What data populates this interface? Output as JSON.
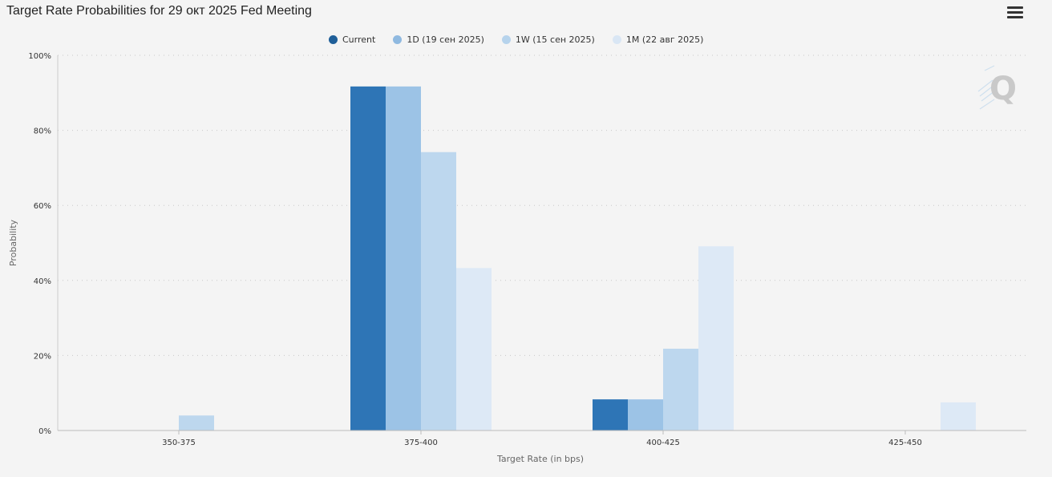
{
  "header": {
    "title": "Target Rate Probabilities for 29 окт 2025 Fed Meeting",
    "menu_icon": "hamburger-menu-icon"
  },
  "watermark": {
    "text": "Q"
  },
  "chart_data": {
    "type": "bar",
    "title": "Target Rate Probabilities for 29 окт 2025 Fed Meeting",
    "xlabel": "Target Rate (in bps)",
    "ylabel": "Probability",
    "categories": [
      "350-375",
      "375-400",
      "400-425",
      "425-450"
    ],
    "ylim": [
      0,
      100
    ],
    "y_ticks": [
      "0%",
      "20%",
      "40%",
      "60%",
      "80%",
      "100%"
    ],
    "grid": true,
    "legend_position": "top-center",
    "series": [
      {
        "name": "Current",
        "color": "#2e75b6",
        "values": [
          0,
          91.7,
          8.3,
          0
        ]
      },
      {
        "name": "1D (19 сен 2025)",
        "color": "#9cc3e6",
        "values": [
          0,
          91.7,
          8.3,
          0
        ]
      },
      {
        "name": "1W (15 сен 2025)",
        "color": "#bdd7ee",
        "values": [
          4.0,
          74.2,
          21.8,
          0
        ]
      },
      {
        "name": "1M (22 авг 2025)",
        "color": "#dde9f6",
        "values": [
          0,
          43.3,
          49.1,
          7.5
        ]
      }
    ]
  }
}
